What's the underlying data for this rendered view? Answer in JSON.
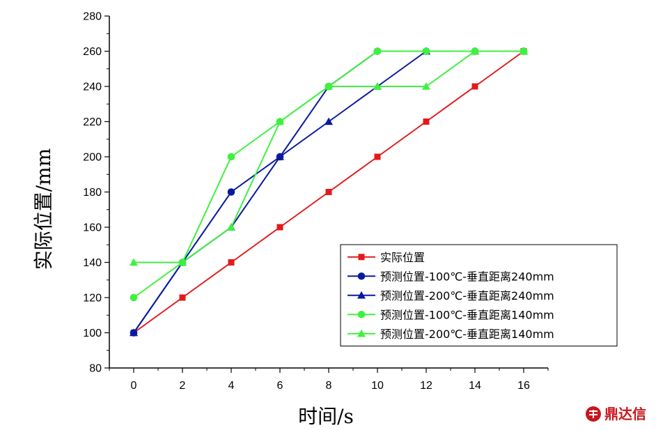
{
  "chart_data": {
    "type": "line",
    "xlabel": "时间/s",
    "ylabel": "实际位置/mm",
    "xlim": [
      -1,
      17
    ],
    "ylim": [
      80,
      280
    ],
    "x_ticks": [
      0,
      2,
      4,
      6,
      8,
      10,
      12,
      14,
      16
    ],
    "y_ticks": [
      80,
      100,
      120,
      140,
      160,
      180,
      200,
      220,
      240,
      260,
      280
    ],
    "grid": false,
    "legend_position": "bottom-right",
    "series": [
      {
        "name": "实际位置",
        "color": "#e31a1c",
        "marker": "square",
        "x": [
          0,
          2,
          4,
          6,
          8,
          10,
          12,
          14,
          16
        ],
        "y": [
          100,
          120,
          140,
          160,
          180,
          200,
          220,
          240,
          260
        ]
      },
      {
        "name": "预测位置-100℃-垂直距离240mm",
        "color": "#0a1a9e",
        "marker": "circle",
        "x": [
          0,
          2,
          4,
          6,
          8,
          10,
          12,
          14,
          16
        ],
        "y": [
          100,
          140,
          180,
          200,
          240,
          260,
          260,
          260,
          260
        ]
      },
      {
        "name": "预测位置-200℃-垂直距离240mm",
        "color": "#0a1a9e",
        "marker": "triangle",
        "x": [
          0,
          2,
          4,
          6,
          8,
          10,
          12,
          14,
          16
        ],
        "y": [
          100,
          140,
          160,
          200,
          220,
          240,
          260,
          260,
          260
        ]
      },
      {
        "name": "预测位置-100℃-垂直距离140mm",
        "color": "#3ef13e",
        "marker": "circle",
        "x": [
          0,
          2,
          4,
          6,
          8,
          10,
          12,
          14,
          16
        ],
        "y": [
          120,
          140,
          200,
          220,
          240,
          260,
          260,
          260,
          260
        ]
      },
      {
        "name": "预测位置-200℃-垂直距离140mm",
        "color": "#3ef13e",
        "marker": "triangle",
        "x": [
          0,
          2,
          4,
          6,
          8,
          10,
          12,
          14,
          16
        ],
        "y": [
          140,
          140,
          160,
          220,
          240,
          240,
          240,
          260,
          260
        ]
      }
    ]
  },
  "watermark": {
    "text": "鼎达信",
    "color": "#c8161d"
  }
}
